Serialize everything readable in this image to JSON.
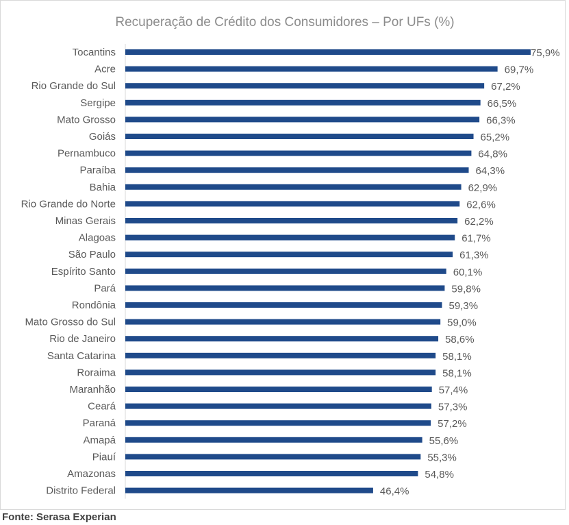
{
  "chart_data": {
    "type": "bar",
    "orientation": "horizontal",
    "title": "Recuperação de Crédito dos Consumidores – Por UFs (%)",
    "categories": [
      "Tocantins",
      "Acre",
      "Rio Grande do Sul",
      "Sergipe",
      "Mato Grosso",
      "Goiás",
      "Pernambuco",
      "Paraíba",
      "Bahia",
      "Rio Grande do Norte",
      "Minas Gerais",
      "Alagoas",
      "São Paulo",
      "Espírito Santo",
      "Pará",
      "Rondônia",
      "Mato Grosso do Sul",
      "Rio de Janeiro",
      "Santa Catarina",
      "Roraima",
      "Maranhão",
      "Ceará",
      "Paraná",
      "Amapá",
      "Piauí",
      "Amazonas",
      "Distrito Federal"
    ],
    "values": [
      75.9,
      69.7,
      67.2,
      66.5,
      66.3,
      65.2,
      64.8,
      64.3,
      62.9,
      62.6,
      62.2,
      61.7,
      61.3,
      60.1,
      59.8,
      59.3,
      59.0,
      58.6,
      58.1,
      58.1,
      57.4,
      57.3,
      57.2,
      55.6,
      55.3,
      54.8,
      46.4
    ],
    "value_labels": [
      "75,9%",
      "69,7%",
      "67,2%",
      "66,5%",
      "66,3%",
      "65,2%",
      "64,8%",
      "64,3%",
      "62,9%",
      "62,6%",
      "62,2%",
      "61,7%",
      "61,3%",
      "60,1%",
      "59,8%",
      "59,3%",
      "59,0%",
      "58,6%",
      "58,1%",
      "58,1%",
      "57,4%",
      "57,3%",
      "57,2%",
      "55,6%",
      "55,3%",
      "54,8%",
      "46,4%"
    ],
    "xlim": [
      0,
      75.9
    ],
    "xlabel": "",
    "ylabel": "",
    "grid": false,
    "legend": "none",
    "bar_color": "#1f4a8a"
  },
  "footer": {
    "source": "Fonte: Serasa Experian"
  }
}
